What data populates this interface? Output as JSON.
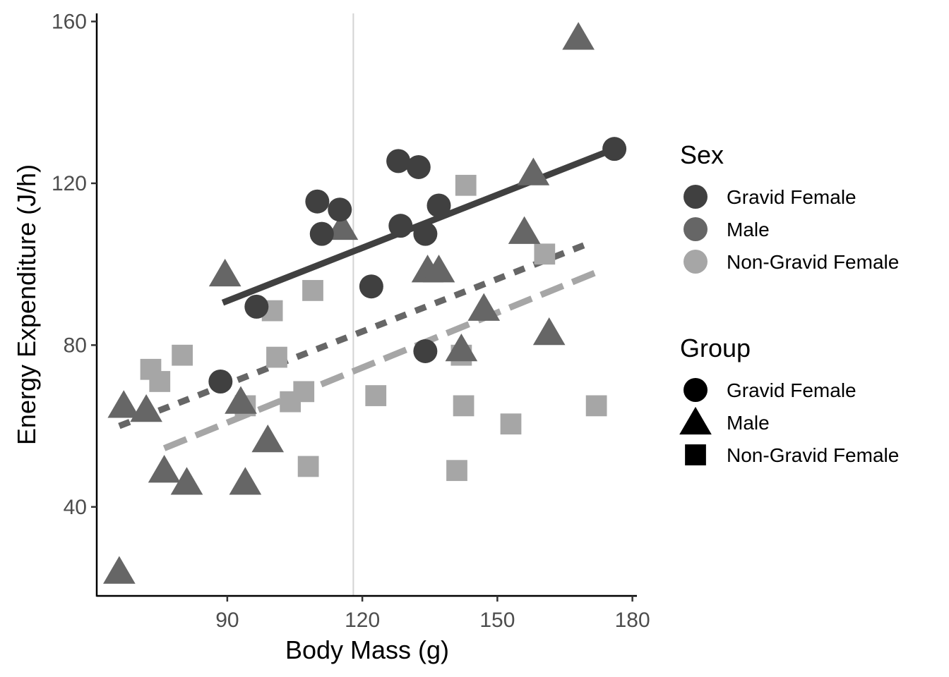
{
  "chart_data": {
    "type": "scatter",
    "title": "",
    "xlabel": "Body Mass (g)",
    "ylabel": "Energy Expenditure (J/h)",
    "xlim": [
      61,
      181
    ],
    "ylim": [
      18,
      162
    ],
    "xticks": [
      90,
      120,
      150,
      180
    ],
    "yticks": [
      40,
      80,
      120,
      160
    ],
    "xtick_labels": [
      "90",
      "120",
      "150",
      "180"
    ],
    "ytick_labels": [
      "40",
      "80",
      "120",
      "160"
    ],
    "grid": false,
    "vline_x": 118,
    "legend_placement": "right",
    "legends": [
      {
        "title": "Sex",
        "kind": "color",
        "entries": [
          {
            "label": "Gravid Female",
            "color": "#404040"
          },
          {
            "label": "Male",
            "color": "#666666"
          },
          {
            "label": "Non-Gravid Female",
            "color": "#a6a6a6"
          }
        ]
      },
      {
        "title": "Group",
        "kind": "shape",
        "entries": [
          {
            "label": "Gravid Female",
            "shape": "circle"
          },
          {
            "label": "Male",
            "shape": "triangle"
          },
          {
            "label": "Non-Gravid Female",
            "shape": "square"
          }
        ]
      }
    ],
    "series": [
      {
        "name": "Gravid Female",
        "shape": "circle",
        "color": "#404040",
        "points": [
          [
            88.5,
            71
          ],
          [
            96.5,
            89.5
          ],
          [
            110,
            115.5
          ],
          [
            111,
            107.5
          ],
          [
            115,
            113.5
          ],
          [
            122,
            94.5
          ],
          [
            128,
            125.5
          ],
          [
            128.5,
            109.5
          ],
          [
            132.5,
            124
          ],
          [
            134,
            107.5
          ],
          [
            134,
            78.5
          ],
          [
            137,
            114.5
          ],
          [
            176,
            128.5
          ]
        ],
        "fit": {
          "style": "solid",
          "x": [
            89,
            176
          ],
          "y": [
            90.5,
            128.5
          ]
        }
      },
      {
        "name": "Male",
        "shape": "triangle",
        "color": "#666666",
        "points": [
          [
            66,
            24
          ],
          [
            67,
            65
          ],
          [
            72,
            64
          ],
          [
            76,
            49
          ],
          [
            81,
            46
          ],
          [
            89.5,
            97.5
          ],
          [
            93,
            66
          ],
          [
            94,
            46
          ],
          [
            99,
            56.5
          ],
          [
            115.5,
            109
          ],
          [
            134.5,
            98.5
          ],
          [
            137,
            98.5
          ],
          [
            142,
            79
          ],
          [
            147,
            89
          ],
          [
            156,
            108
          ],
          [
            158,
            122.5
          ],
          [
            161.5,
            83
          ],
          [
            168,
            156
          ]
        ],
        "fit": {
          "style": "dashed",
          "x": [
            66,
            170
          ],
          "y": [
            60,
            105
          ]
        }
      },
      {
        "name": "Non-Gravid Female",
        "shape": "square",
        "color": "#a6a6a6",
        "points": [
          [
            73,
            74
          ],
          [
            75,
            71
          ],
          [
            80,
            77.5
          ],
          [
            94,
            65
          ],
          [
            100,
            88.5
          ],
          [
            101,
            77
          ],
          [
            104,
            66
          ],
          [
            107,
            68.5
          ],
          [
            108,
            50
          ],
          [
            109,
            93.5
          ],
          [
            123,
            67.5
          ],
          [
            141,
            49
          ],
          [
            142,
            77.5
          ],
          [
            142.5,
            65
          ],
          [
            143,
            119.5
          ],
          [
            153,
            60.5
          ],
          [
            160.5,
            102.5
          ],
          [
            172,
            65
          ]
        ],
        "fit": {
          "style": "longdash",
          "x": [
            76,
            172
          ],
          "y": [
            54.5,
            98
          ]
        }
      }
    ]
  }
}
